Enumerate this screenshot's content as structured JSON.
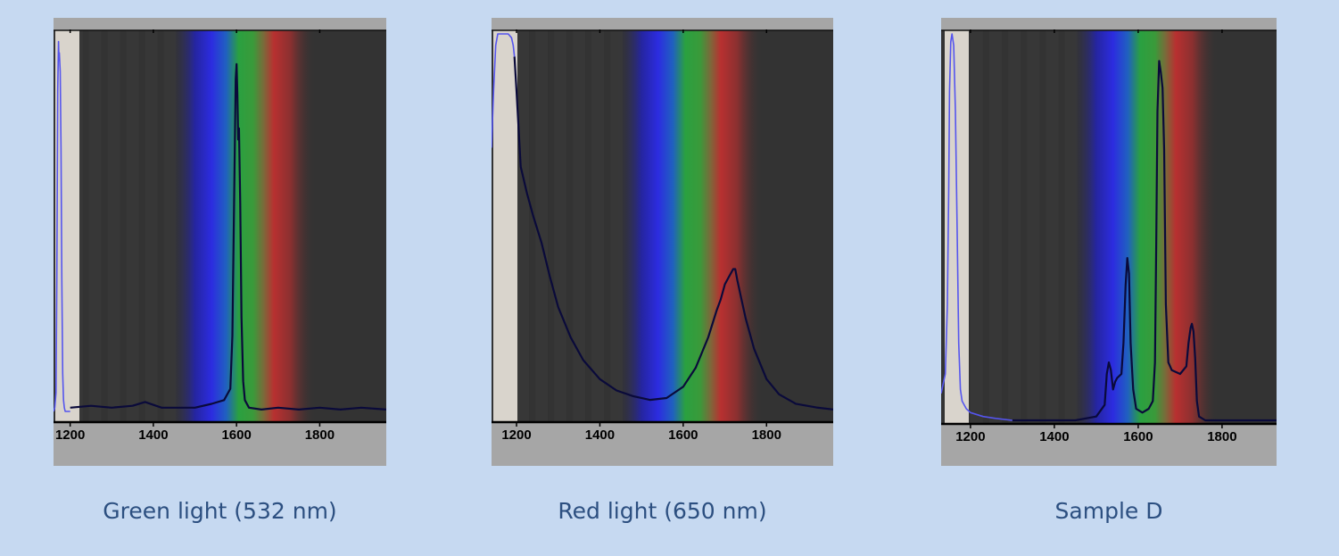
{
  "captions": [
    "Green light (532 nm)",
    "Red light (650 nm)",
    "Sample D"
  ],
  "colors": {
    "page_background": "#c6d9f1",
    "frame": "#a6a6a6",
    "dark_background": "#333333",
    "calibration_strip": "#d9d4cc",
    "reference_trace": "#5555ee",
    "spectrum_trace": "#0a0a3a"
  },
  "chart_data": [
    {
      "type": "line",
      "title": "",
      "xlabel": "",
      "ylabel": "",
      "xlim": [
        1160,
        1960
      ],
      "ylim": [
        0,
        1
      ],
      "x_ticks": [
        1200,
        1400,
        1600,
        1800
      ],
      "x_tick_labels": [
        "1200",
        "1400",
        "1600",
        "1800"
      ],
      "series": [
        {
          "name": "",
          "color": "#5555ee",
          "x": [
            1160,
            1163,
            1166,
            1168,
            1170,
            1172,
            1173,
            1174,
            1176,
            1178,
            1180,
            1182,
            1184,
            1186,
            1188,
            1190,
            1200
          ],
          "y": [
            0.0,
            0.01,
            0.05,
            0.35,
            0.85,
            0.98,
            0.93,
            0.95,
            0.9,
            0.7,
            0.35,
            0.1,
            0.03,
            0.01,
            0.0,
            0.0,
            0.0
          ]
        },
        {
          "name": "",
          "color": "#0a0a3a",
          "x": [
            1200,
            1250,
            1300,
            1350,
            1380,
            1420,
            1460,
            1500,
            1540,
            1570,
            1585,
            1590,
            1594,
            1598,
            1600,
            1602,
            1604,
            1606,
            1609,
            1612,
            1616,
            1620,
            1630,
            1660,
            1700,
            1750,
            1800,
            1850,
            1900,
            1960
          ],
          "y": [
            0.01,
            0.015,
            0.01,
            0.015,
            0.025,
            0.01,
            0.01,
            0.01,
            0.02,
            0.03,
            0.06,
            0.2,
            0.55,
            0.88,
            0.92,
            0.84,
            0.72,
            0.75,
            0.55,
            0.25,
            0.08,
            0.03,
            0.01,
            0.005,
            0.01,
            0.005,
            0.01,
            0.005,
            0.01,
            0.005
          ]
        }
      ]
    },
    {
      "type": "line",
      "title": "",
      "xlabel": "",
      "ylabel": "",
      "xlim": [
        1140,
        1960
      ],
      "ylim": [
        0,
        1
      ],
      "x_ticks": [
        1200,
        1400,
        1600,
        1800
      ],
      "x_tick_labels": [
        "1200",
        "1400",
        "1600",
        "1800"
      ],
      "series": [
        {
          "name": "",
          "color": "#5555ee",
          "x": [
            1140,
            1145,
            1150,
            1155,
            1160,
            1170,
            1180,
            1188,
            1192,
            1195
          ],
          "y": [
            0.7,
            0.85,
            0.97,
            1.0,
            1.0,
            1.0,
            1.0,
            0.99,
            0.97,
            0.94
          ]
        },
        {
          "name": "",
          "color": "#0a0a3a",
          "x": [
            1195,
            1200,
            1210,
            1225,
            1240,
            1260,
            1280,
            1300,
            1330,
            1360,
            1400,
            1440,
            1480,
            1520,
            1560,
            1600,
            1630,
            1660,
            1680,
            1690,
            1700,
            1710,
            1720,
            1725,
            1730,
            1740,
            1750,
            1770,
            1800,
            1830,
            1870,
            1920,
            1960
          ],
          "y": [
            0.94,
            0.85,
            0.65,
            0.58,
            0.52,
            0.45,
            0.36,
            0.28,
            0.2,
            0.14,
            0.09,
            0.06,
            0.045,
            0.035,
            0.04,
            0.07,
            0.12,
            0.2,
            0.27,
            0.3,
            0.34,
            0.36,
            0.38,
            0.38,
            0.35,
            0.3,
            0.25,
            0.17,
            0.09,
            0.05,
            0.025,
            0.015,
            0.01
          ]
        }
      ]
    },
    {
      "type": "line",
      "title": "",
      "xlabel": "",
      "ylabel": "",
      "xlim": [
        1130,
        1930
      ],
      "ylim": [
        0,
        1
      ],
      "x_ticks": [
        1200,
        1400,
        1600,
        1800
      ],
      "x_tick_labels": [
        "1200",
        "1400",
        "1600",
        "1800"
      ],
      "series": [
        {
          "name": "",
          "color": "#5555ee",
          "x": [
            1130,
            1140,
            1145,
            1148,
            1150,
            1153,
            1156,
            1160,
            1164,
            1168,
            1172,
            1176,
            1180,
            1190,
            1200,
            1230,
            1260,
            1300
          ],
          "y": [
            0.07,
            0.12,
            0.3,
            0.6,
            0.85,
            0.98,
            1.0,
            0.97,
            0.8,
            0.5,
            0.2,
            0.08,
            0.05,
            0.03,
            0.02,
            0.01,
            0.005,
            0.0
          ]
        },
        {
          "name": "",
          "color": "#0a0a3a",
          "x": [
            1300,
            1450,
            1500,
            1520,
            1525,
            1530,
            1535,
            1540,
            1545,
            1550,
            1560,
            1565,
            1570,
            1574,
            1578,
            1582,
            1588,
            1595,
            1610,
            1625,
            1635,
            1640,
            1643,
            1646,
            1650,
            1654,
            1658,
            1662,
            1666,
            1672,
            1680,
            1700,
            1715,
            1720,
            1725,
            1728,
            1732,
            1736,
            1740,
            1745,
            1760,
            1800,
            1930
          ],
          "y": [
            0.0,
            0.0,
            0.01,
            0.04,
            0.12,
            0.15,
            0.13,
            0.08,
            0.1,
            0.11,
            0.12,
            0.2,
            0.35,
            0.42,
            0.38,
            0.2,
            0.08,
            0.03,
            0.02,
            0.03,
            0.05,
            0.15,
            0.45,
            0.8,
            0.93,
            0.9,
            0.86,
            0.7,
            0.3,
            0.15,
            0.13,
            0.12,
            0.14,
            0.2,
            0.24,
            0.25,
            0.23,
            0.16,
            0.05,
            0.01,
            0.0,
            0.0,
            0.0
          ]
        }
      ]
    }
  ]
}
